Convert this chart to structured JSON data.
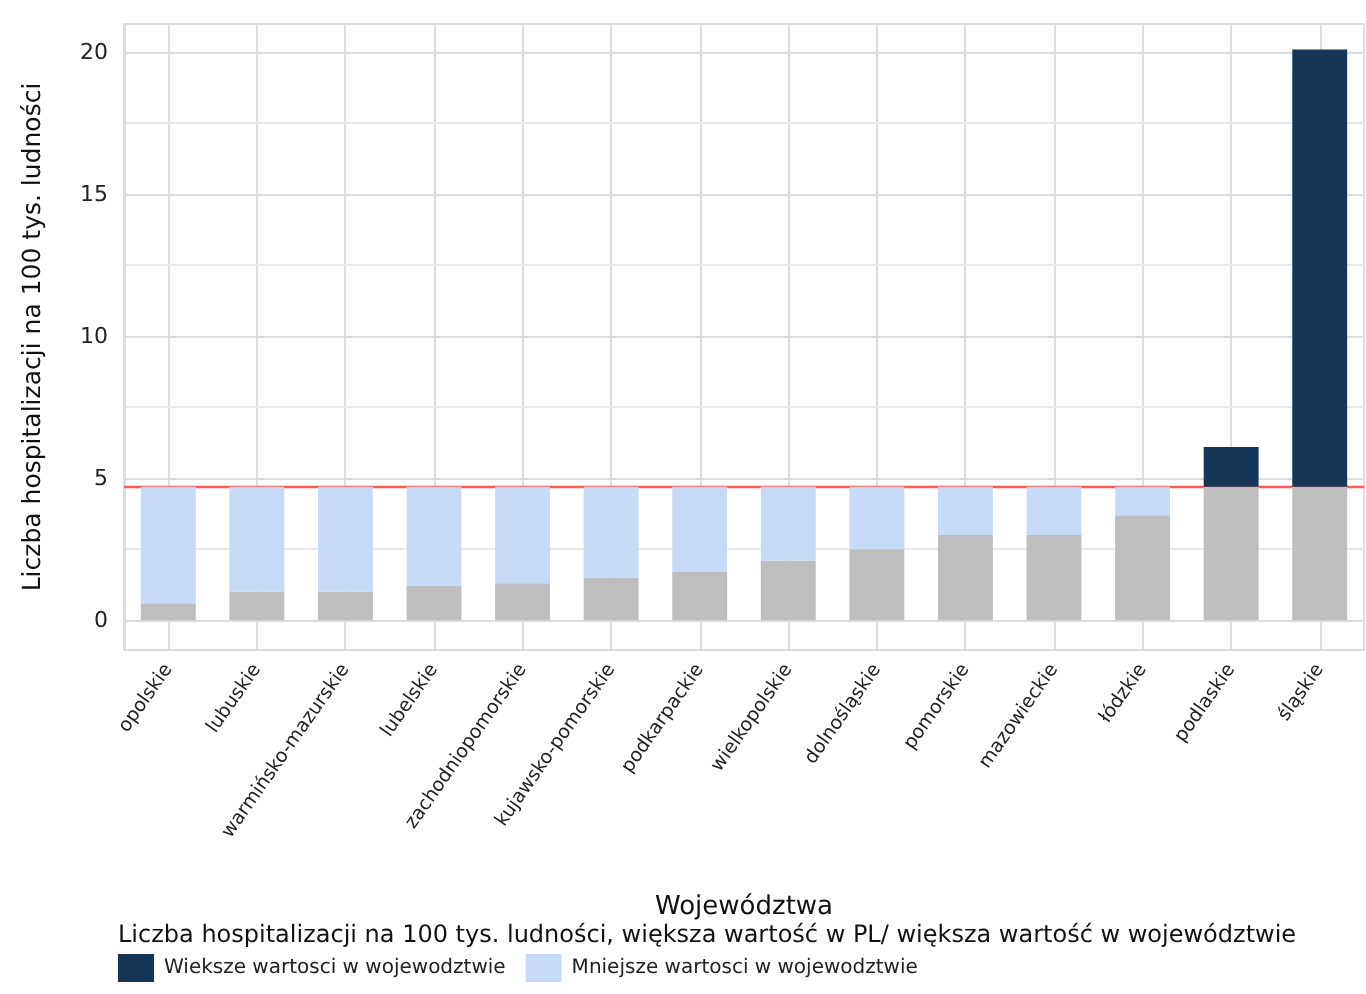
{
  "chart_data": {
    "type": "bar",
    "stacked": true,
    "xlabel": "Województwa",
    "ylabel": "Liczba hospitalizacji na 100 tys. ludności",
    "legend_title": "Liczba hospitalizacji na 100 tys. ludności, większa wartość w PL/ większa wartość w województwie",
    "categories": [
      "opolskie",
      "lubuskie",
      "warmińsko-mazurskie",
      "lubelskie",
      "zachodniopomorskie",
      "kujawsko-pomorskie",
      "podkarpackie",
      "wielkopolskie",
      "dolnośląskie",
      "pomorskie",
      "mazowieckie",
      "łódzkie",
      "podlaskie",
      "śląskie"
    ],
    "series": [
      {
        "color": "#bebebe",
        "values": [
          0.6,
          1.0,
          1.0,
          1.2,
          1.3,
          1.5,
          1.7,
          2.1,
          2.5,
          3.0,
          3.0,
          3.7,
          4.7,
          4.7
        ]
      },
      {
        "name": "Wieksze wartosci w wojewodztwie",
        "color": "#163658",
        "values": [
          null,
          null,
          null,
          null,
          null,
          null,
          null,
          null,
          null,
          null,
          null,
          null,
          1.4,
          15.4
        ]
      },
      {
        "name": "Mniejsze wartosci w wojewodztwie",
        "color": "#c6daf8",
        "values": [
          4.1,
          3.7,
          3.7,
          3.5,
          3.4,
          3.2,
          3.0,
          2.6,
          2.2,
          1.7,
          1.7,
          1.0,
          null,
          null
        ]
      }
    ],
    "ylim": [
      -1.05,
      21
    ],
    "yticks": [
      0,
      5,
      10,
      15,
      20
    ],
    "grid": true,
    "legend": "bottom",
    "ref_lines": [
      {
        "axis": "y",
        "value": 4.7,
        "color": "#ff5a5a"
      }
    ]
  }
}
